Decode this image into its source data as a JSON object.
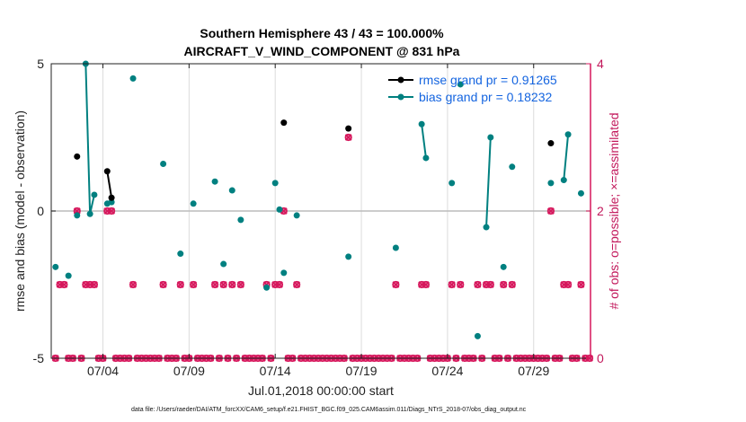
{
  "chart_data": {
    "type": "scatter",
    "title_line1": "Southern Hemisphere 43 / 43 = 100.000%",
    "title_line2": "AIRCRAFT_V_WIND_COMPONENT @ 831 hPa",
    "xlabel": "Jul.01,2018 00:00:00 start",
    "ylabel_left": "rmse and bias (model - observation)",
    "ylabel_right": "# of obs: o=possible; ×=assimilated",
    "footnote": "data file: /Users/raeder/DAI/ATM_forcXX/CAM6_setup/f.e21.FHIST_BGC.f09_025.CAM6assim.011/Diags_NTrS_2018-07/obs_diag_output.nc",
    "xlim": [
      0.5,
      31.8
    ],
    "ylim_left": [
      -5,
      5
    ],
    "ylim_right": [
      0,
      4
    ],
    "x_ticks": [
      3.5,
      8.5,
      13.5,
      18.5,
      23.5,
      28.5
    ],
    "x_tick_labels": [
      "07/04",
      "07/09",
      "07/14",
      "07/19",
      "07/24",
      "07/29"
    ],
    "y_ticks_left": [
      -5,
      0,
      5
    ],
    "y_tick_labels_left": [
      "-5",
      "0",
      "5"
    ],
    "y_ticks_right": [
      0,
      2,
      4
    ],
    "y_tick_labels_right": [
      "0",
      "2",
      "4"
    ],
    "colors": {
      "rmse": "#000000",
      "bias": "#008080",
      "obs": "#d6175c",
      "grid": "#dcdcdc",
      "zero": "#bbbbbb"
    },
    "legend": [
      {
        "name": "rmse",
        "label": "rmse grand pr = 0.91265"
      },
      {
        "name": "bias",
        "label": "bias grand pr = 0.18232"
      }
    ],
    "rmse_segments": [
      [
        [
          2.0,
          1.85
        ]
      ],
      [
        [
          3.75,
          1.35
        ],
        [
          4.0,
          0.45
        ]
      ],
      [
        [
          14.0,
          3.0
        ]
      ],
      [
        [
          17.75,
          2.8
        ]
      ],
      [
        [
          29.5,
          2.3
        ]
      ]
    ],
    "bias_segments": [
      [
        [
          0.75,
          -1.9
        ]
      ],
      [
        [
          1.5,
          -2.2
        ]
      ],
      [
        [
          2.0,
          -0.15
        ]
      ],
      [
        [
          2.5,
          5.0
        ],
        [
          2.75,
          -0.1
        ],
        [
          3.0,
          0.55
        ]
      ],
      [
        [
          3.75,
          0.25
        ],
        [
          4.0,
          0.3
        ]
      ],
      [
        [
          5.25,
          4.5
        ]
      ],
      [
        [
          7.0,
          1.6
        ]
      ],
      [
        [
          8.0,
          -1.45
        ]
      ],
      [
        [
          8.75,
          0.25
        ]
      ],
      [
        [
          10.0,
          1.0
        ]
      ],
      [
        [
          10.5,
          -1.8
        ]
      ],
      [
        [
          11.0,
          0.7
        ]
      ],
      [
        [
          11.5,
          -0.3
        ]
      ],
      [
        [
          13.0,
          -2.6
        ]
      ],
      [
        [
          13.5,
          0.95
        ]
      ],
      [
        [
          13.75,
          0.05
        ]
      ],
      [
        [
          14.0,
          -2.1
        ]
      ],
      [
        [
          14.75,
          -0.15
        ]
      ],
      [
        [
          17.75,
          -1.55
        ]
      ],
      [
        [
          20.5,
          -1.25
        ]
      ],
      [
        [
          22.0,
          2.95
        ],
        [
          22.25,
          1.8
        ]
      ],
      [
        [
          23.75,
          0.95
        ]
      ],
      [
        [
          24.25,
          4.3
        ]
      ],
      [
        [
          25.25,
          -4.25
        ]
      ],
      [
        [
          25.75,
          -0.55
        ],
        [
          26.0,
          2.5
        ]
      ],
      [
        [
          26.75,
          -1.9
        ]
      ],
      [
        [
          27.25,
          1.5
        ]
      ],
      [
        [
          29.5,
          0.95
        ]
      ],
      [
        [
          30.25,
          1.05
        ],
        [
          30.5,
          2.6
        ]
      ],
      [
        [
          31.25,
          0.6
        ]
      ]
    ],
    "obs_possible": [
      [
        1.0,
        1
      ],
      [
        1.25,
        1
      ],
      [
        2.0,
        2
      ],
      [
        2.5,
        1
      ],
      [
        2.75,
        1
      ],
      [
        3.0,
        1
      ],
      [
        3.75,
        2
      ],
      [
        4.0,
        2
      ],
      [
        5.25,
        1
      ],
      [
        7.0,
        1
      ],
      [
        8.0,
        1
      ],
      [
        8.75,
        1
      ],
      [
        10.0,
        1
      ],
      [
        10.5,
        1
      ],
      [
        11.0,
        1
      ],
      [
        11.5,
        1
      ],
      [
        13.0,
        1
      ],
      [
        13.5,
        1
      ],
      [
        13.75,
        1
      ],
      [
        14.0,
        2
      ],
      [
        14.75,
        1
      ],
      [
        17.75,
        3
      ],
      [
        20.5,
        1
      ],
      [
        22.0,
        1
      ],
      [
        22.25,
        1
      ],
      [
        23.75,
        1
      ],
      [
        24.25,
        1
      ],
      [
        25.25,
        1
      ],
      [
        25.75,
        1
      ],
      [
        26.0,
        1
      ],
      [
        26.75,
        1
      ],
      [
        27.25,
        1
      ],
      [
        29.5,
        2
      ],
      [
        30.25,
        1
      ],
      [
        30.5,
        1
      ],
      [
        31.25,
        1
      ]
    ],
    "obs_assimilated": [
      [
        1.0,
        1
      ],
      [
        1.25,
        1
      ],
      [
        2.0,
        2
      ],
      [
        2.5,
        1
      ],
      [
        2.75,
        1
      ],
      [
        3.0,
        1
      ],
      [
        3.75,
        2
      ],
      [
        4.0,
        2
      ],
      [
        5.25,
        1
      ],
      [
        7.0,
        1
      ],
      [
        8.0,
        1
      ],
      [
        8.75,
        1
      ],
      [
        10.0,
        1
      ],
      [
        10.5,
        1
      ],
      [
        11.0,
        1
      ],
      [
        11.5,
        1
      ],
      [
        13.0,
        1
      ],
      [
        13.5,
        1
      ],
      [
        13.75,
        1
      ],
      [
        14.0,
        2
      ],
      [
        14.75,
        1
      ],
      [
        17.75,
        3
      ],
      [
        20.5,
        1
      ],
      [
        22.0,
        1
      ],
      [
        22.25,
        1
      ],
      [
        23.75,
        1
      ],
      [
        24.25,
        1
      ],
      [
        25.25,
        1
      ],
      [
        25.75,
        1
      ],
      [
        26.0,
        1
      ],
      [
        26.75,
        1
      ],
      [
        27.25,
        1
      ],
      [
        29.5,
        2
      ],
      [
        30.25,
        1
      ],
      [
        30.5,
        1
      ],
      [
        31.25,
        1
      ]
    ],
    "zero_start": 0.75,
    "zero_end": 31.75,
    "zero_step": 0.25
  }
}
